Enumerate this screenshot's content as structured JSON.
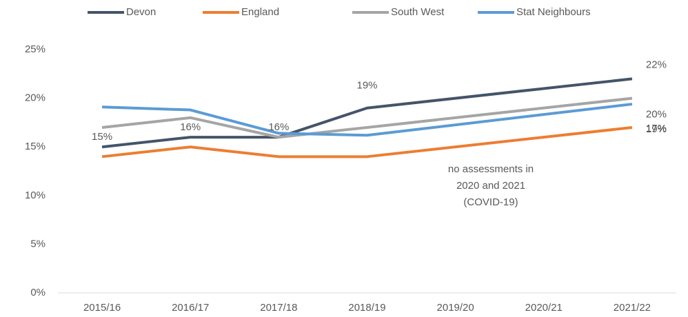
{
  "chart_data": {
    "type": "line",
    "categories": [
      "2015/16",
      "2016/17",
      "2017/18",
      "2018/19",
      "2019/20",
      "2020/21",
      "2021/22"
    ],
    "series": [
      {
        "name": "Devon",
        "color": "#44546a",
        "values": [
          15,
          16,
          16,
          19,
          null,
          null,
          22
        ],
        "value_labels": [
          "15%",
          "16%",
          "16%",
          "19%",
          null,
          null,
          "22%"
        ]
      },
      {
        "name": "England",
        "color": "#ed7d31",
        "values": [
          14,
          15,
          14,
          14,
          null,
          null,
          17
        ],
        "value_labels": [
          null,
          null,
          null,
          null,
          null,
          null,
          "17%"
        ]
      },
      {
        "name": "South West",
        "color": "#a5a5a5",
        "values": [
          17,
          18,
          16,
          17,
          null,
          null,
          20
        ],
        "value_labels": [
          null,
          null,
          null,
          null,
          null,
          null,
          "20%"
        ]
      },
      {
        "name": "Stat Neighbours",
        "color": "#5b9bd5",
        "values": [
          19.1,
          18.8,
          16.4,
          16.2,
          null,
          null,
          19.4
        ],
        "value_labels": [
          null,
          null,
          null,
          null,
          null,
          null,
          "19%"
        ]
      }
    ],
    "ylim": [
      0,
      25
    ],
    "yticks": [
      {
        "value": 0,
        "label": "0%"
      },
      {
        "value": 5,
        "label": "5%"
      },
      {
        "value": 10,
        "label": "10%"
      },
      {
        "value": 15,
        "label": "15%"
      },
      {
        "value": 20,
        "label": "20%"
      },
      {
        "value": 25,
        "label": "25%"
      }
    ],
    "grid": false,
    "legend": "top",
    "annotation": [
      "no assessments in",
      "2020 and 2021",
      "(COVID-19)"
    ]
  }
}
